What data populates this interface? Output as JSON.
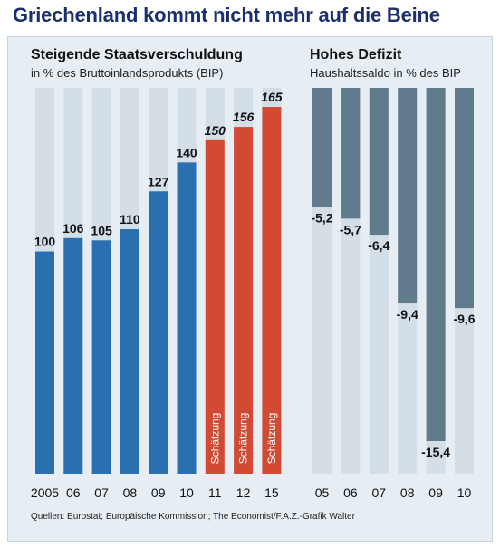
{
  "headline": "Griechenland kommt nicht mehr auf die Beine",
  "source": "Quellen: Eurostat; Europäische Kommission; The Economist/F.A.Z.-Grafik Walter",
  "colors": {
    "panel_bg": "#e6edf3",
    "column_bg": "#d4dee7",
    "actual": "#2a6fb0",
    "estimate": "#d24a33",
    "deficit": "#617a8c",
    "headline": "#1a2f6e"
  },
  "chart_data": [
    {
      "type": "bar",
      "title": "Steigende Staatsverschuldung",
      "subtitle": "in % des Bruttoinlandsprodukts (BIP)",
      "categories": [
        "2005",
        "06",
        "07",
        "08",
        "09",
        "10",
        "11",
        "12",
        "15"
      ],
      "values": [
        100,
        106,
        105,
        110,
        127,
        140,
        150,
        156,
        165
      ],
      "value_labels": [
        "100",
        "106",
        "105",
        "110",
        "127",
        "140",
        "150",
        "156",
        "165"
      ],
      "estimate": [
        false,
        false,
        false,
        false,
        false,
        false,
        true,
        true,
        true
      ],
      "estimate_label": "Schätzung",
      "ylim": [
        0,
        165
      ],
      "grid": false,
      "legend": "none"
    },
    {
      "type": "bar",
      "title": "Hohes Defizit",
      "subtitle": "Haushaltssaldo in % des BIP",
      "categories": [
        "05",
        "06",
        "07",
        "08",
        "09",
        "10"
      ],
      "values": [
        -5.2,
        -5.7,
        -6.4,
        -9.4,
        -15.4,
        -9.6
      ],
      "value_labels": [
        "-5,2",
        "-5,7",
        "-6,4",
        "-9,4",
        "-15,4",
        "-9,6"
      ],
      "ylim": [
        -15.4,
        0
      ],
      "grid": false,
      "legend": "none"
    }
  ]
}
